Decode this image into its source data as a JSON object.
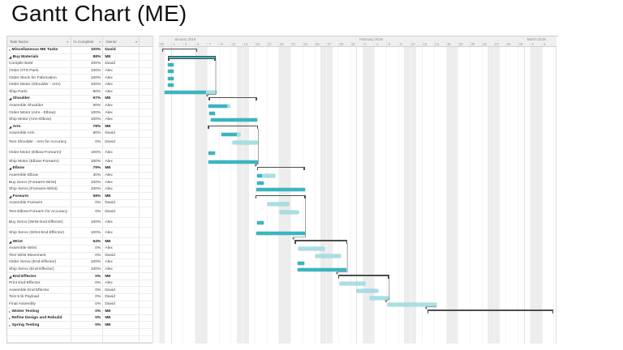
{
  "page_title": "Gantt Chart (ME)",
  "colors": {
    "bar_dark": "#3ab5c1",
    "bar_light": "#a7dfe4",
    "bracket": "#4d4d4d",
    "connector": "#7a7a7a",
    "header_bg": "#efefef",
    "weekend": "#ededed"
  },
  "icons": {
    "dropdown": "▾",
    "expanded": "◢",
    "collapsed": "▸"
  },
  "table": {
    "columns": [
      "Task Name",
      "% Complete",
      "Owner"
    ],
    "empty_rows": 2
  },
  "timeline": {
    "months": [
      {
        "label": "January 2019",
        "startDay": 2
      },
      {
        "label": "February 2019",
        "startDay": 33
      },
      {
        "label": "March 2019",
        "startDay": 61
      }
    ],
    "ticks": [
      {
        "d": 0,
        "t": "30"
      },
      {
        "d": 2,
        "t": "1"
      },
      {
        "d": 4,
        "t": "3"
      },
      {
        "d": 6,
        "t": "5"
      },
      {
        "d": 8,
        "t": "7"
      },
      {
        "d": 10,
        "t": "9"
      },
      {
        "d": 12,
        "t": "11"
      },
      {
        "d": 14,
        "t": "13"
      },
      {
        "d": 16,
        "t": "15"
      },
      {
        "d": 18,
        "t": "17"
      },
      {
        "d": 20,
        "t": "19"
      },
      {
        "d": 22,
        "t": "21"
      },
      {
        "d": 24,
        "t": "23"
      },
      {
        "d": 26,
        "t": "25"
      },
      {
        "d": 28,
        "t": "27"
      },
      {
        "d": 30,
        "t": "29"
      },
      {
        "d": 32,
        "t": "31"
      },
      {
        "d": 34,
        "t": "2"
      },
      {
        "d": 36,
        "t": "4"
      },
      {
        "d": 38,
        "t": "6"
      },
      {
        "d": 40,
        "t": "8"
      },
      {
        "d": 42,
        "t": "10"
      },
      {
        "d": 44,
        "t": "12"
      },
      {
        "d": 46,
        "t": "14"
      },
      {
        "d": 48,
        "t": "16"
      },
      {
        "d": 50,
        "t": "18"
      },
      {
        "d": 52,
        "t": "20"
      },
      {
        "d": 54,
        "t": "22"
      },
      {
        "d": 56,
        "t": "24"
      },
      {
        "d": 58,
        "t": "26"
      },
      {
        "d": 60,
        "t": "28"
      },
      {
        "d": 62,
        "t": "2"
      },
      {
        "d": 64,
        "t": "4"
      }
    ],
    "totalDays": 66.5
  },
  "tasks": [
    {
      "name": "Miscellaneous ME Tasks",
      "pct": "100%",
      "owner": "David",
      "bold": true,
      "expand": "collapsed",
      "bar": {
        "type": "bracket",
        "s": 0.5,
        "e": 6.4
      }
    },
    {
      "name": "Buy Materials",
      "pct": "88%",
      "owner": "ME",
      "bold": true,
      "expand": "expanded",
      "bar": {
        "type": "summary",
        "s": 1.5,
        "e": 9.5
      }
    },
    {
      "name": "Compile BoM",
      "pct": "100%",
      "owner": "David",
      "level": 1,
      "bar": {
        "type": "task",
        "s": 1.5,
        "e": 2.4,
        "done": 1
      }
    },
    {
      "name": "Order OTS Parts",
      "pct": "100%",
      "owner": "Alex",
      "level": 1,
      "bar": {
        "type": "task",
        "s": 1.5,
        "e": 2.4,
        "done": 1
      }
    },
    {
      "name": "Order Stock for Fabrication",
      "pct": "100%",
      "owner": "Alex",
      "level": 1,
      "bar": {
        "type": "task",
        "s": 1.5,
        "e": 2.4,
        "done": 1
      }
    },
    {
      "name": "Order Motor (Shoulder - Arm)",
      "pct": "100%",
      "owner": "Alex",
      "level": 1,
      "bar": {
        "type": "task",
        "s": 1.5,
        "e": 2.4,
        "done": 1
      }
    },
    {
      "name": "Ship Parts",
      "pct": "80%",
      "owner": "Alex",
      "level": 1,
      "bar": {
        "type": "task",
        "s": 1.0,
        "e": 9.6,
        "done": 0.8
      }
    },
    {
      "name": "Shoulder",
      "pct": "97%",
      "owner": "ME",
      "bold": true,
      "expand": "expanded",
      "bar": {
        "type": "bracket",
        "s": 8.3,
        "e": 16.4
      }
    },
    {
      "name": "Assemble Shoulder",
      "pct": "90%",
      "owner": "Alex",
      "level": 1,
      "bar": {
        "type": "task",
        "s": 8.3,
        "e": 11.8,
        "done": 0.9
      }
    },
    {
      "name": "Order Motor (Arm - Elbow)",
      "pct": "100%",
      "owner": "Alex",
      "level": 1,
      "bar": {
        "type": "task",
        "s": 8.4,
        "e": 9.3,
        "done": 1
      }
    },
    {
      "name": "Ship Motor (Arm-Elbow)",
      "pct": "100%",
      "owner": "Alex",
      "level": 1,
      "bar": {
        "type": "task",
        "s": 8.7,
        "e": 16.4,
        "done": 1
      }
    },
    {
      "name": "Arm",
      "pct": "78%",
      "owner": "ME",
      "bold": true,
      "expand": "expanded",
      "bar": {
        "type": "bracket",
        "s": 8.2,
        "e": 16.6
      }
    },
    {
      "name": "Assemble Arm",
      "pct": "80%",
      "owner": "David",
      "level": 1,
      "bar": {
        "type": "task",
        "s": 10.5,
        "e": 13.6,
        "done": 0.8
      }
    },
    {
      "name": "Test Shoulder - Arm for Accuracy",
      "pct": "0%",
      "owner": "David",
      "level": 1,
      "lines": 2,
      "bar": {
        "type": "task",
        "s": 12.4,
        "e": 16.6,
        "done": 0
      }
    },
    {
      "name": "Order Motor (Elbow-Forearm)",
      "pct": "100%",
      "owner": "Alex",
      "level": 1,
      "lines": 2,
      "bar": {
        "type": "task",
        "s": 8.3,
        "e": 9.4,
        "done": 1
      }
    },
    {
      "name": "Ship Motor (Elbow-Forearm)",
      "pct": "100%",
      "owner": "Alex",
      "level": 1,
      "bar": {
        "type": "task",
        "s": 8.3,
        "e": 16.6,
        "done": 1
      }
    },
    {
      "name": "Elbow",
      "pct": "79%",
      "owner": "ME",
      "bold": true,
      "expand": "expanded",
      "bar": {
        "type": "bracket",
        "s": 16.4,
        "e": 24.4
      }
    },
    {
      "name": "Assemble Elbow",
      "pct": "30%",
      "owner": "Alex",
      "level": 1,
      "bar": {
        "type": "task",
        "s": 16.4,
        "e": 19.4,
        "done": 0.3
      }
    },
    {
      "name": "Buy Servo (Forearm-Wrist)",
      "pct": "100%",
      "owner": "Alex",
      "level": 1,
      "bar": {
        "type": "task",
        "s": 16.4,
        "e": 17.5,
        "done": 1
      }
    },
    {
      "name": "Ship Servo (Forearm-Wrist)",
      "pct": "100%",
      "owner": "Alex",
      "level": 1,
      "bar": {
        "type": "task",
        "s": 16.3,
        "e": 24.4,
        "done": 1
      }
    },
    {
      "name": "Forearm",
      "pct": "58%",
      "owner": "ME",
      "bold": true,
      "expand": "expanded",
      "bar": {
        "type": "bracket",
        "s": 16.1,
        "e": 24.5
      }
    },
    {
      "name": "Assemble Forearm",
      "pct": "0%",
      "owner": "David",
      "level": 1,
      "bar": {
        "type": "task",
        "s": 18.2,
        "e": 21.7,
        "done": 0
      }
    },
    {
      "name": "Test Elbow-Forearm for Accuracy",
      "pct": "0%",
      "owner": "David",
      "level": 1,
      "lines": 2,
      "bar": {
        "type": "task",
        "s": 20.2,
        "e": 23.4,
        "done": 0
      }
    },
    {
      "name": "Buy Servo (Wrist-End Effector)",
      "pct": "100%",
      "owner": "Alex",
      "level": 1,
      "lines": 2,
      "bar": {
        "type": "task",
        "s": 16.4,
        "e": 17.5,
        "done": 1
      }
    },
    {
      "name": "Ship Servo (Wrist-End Effector)",
      "pct": "100%",
      "owner": "Alex",
      "level": 1,
      "lines": 2,
      "bar": {
        "type": "task",
        "s": 16.3,
        "e": 24.4,
        "done": 1
      }
    },
    {
      "name": "Wrist",
      "pct": "54%",
      "owner": "ME",
      "bold": true,
      "expand": "expanded",
      "bar": {
        "type": "bracket",
        "s": 22.7,
        "e": 31.5
      }
    },
    {
      "name": "Assemble Wrist",
      "pct": "0%",
      "owner": "Alex",
      "level": 1,
      "bar": {
        "type": "task",
        "s": 23.3,
        "e": 27.7,
        "done": 0
      }
    },
    {
      "name": "Test Wrist Movement",
      "pct": "0%",
      "owner": "David",
      "level": 1,
      "bar": {
        "type": "task",
        "s": 26.2,
        "e": 30.4,
        "done": 0
      }
    },
    {
      "name": "Order Servo (End-Effector)",
      "pct": "100%",
      "owner": "Alex",
      "level": 1,
      "bar": {
        "type": "task",
        "s": 23.2,
        "e": 24.3,
        "done": 1
      }
    },
    {
      "name": "Ship Servo (End-Effector)",
      "pct": "100%",
      "owner": "Alex",
      "level": 1,
      "bar": {
        "type": "task",
        "s": 23.2,
        "e": 31.3,
        "done": 1
      }
    },
    {
      "name": "End Effector",
      "pct": "0%",
      "owner": "ME",
      "bold": true,
      "expand": "expanded",
      "bar": {
        "type": "bracket",
        "s": 30.0,
        "e": 38.5
      }
    },
    {
      "name": "Print End-Effector",
      "pct": "0%",
      "owner": "Alex",
      "level": 1,
      "bar": {
        "type": "task",
        "s": 30.2,
        "e": 34.4,
        "done": 0
      }
    },
    {
      "name": "Assemble End Effector",
      "pct": "0%",
      "owner": "David",
      "level": 1,
      "bar": {
        "type": "task",
        "s": 33.1,
        "e": 36.6,
        "done": 0
      }
    },
    {
      "name": "Test 5 lb Payload",
      "pct": "0%",
      "owner": "David",
      "level": 1,
      "bar": {
        "type": "task",
        "s": 35.3,
        "e": 38.5,
        "done": 0
      }
    },
    {
      "name": "Final Assembly",
      "pct": "0%",
      "owner": "David",
      "bar": {
        "type": "task",
        "s": 38.2,
        "e": 46.4,
        "done": 0
      }
    },
    {
      "name": "Winter Testing",
      "pct": "0%",
      "owner": "ME",
      "bold": true,
      "expand": "collapsed",
      "bar": {
        "type": "bracket",
        "s": 44.9,
        "e": 66.0
      }
    },
    {
      "name": "Refine Design and Rebuild",
      "pct": "0%",
      "owner": "ME",
      "bold": true,
      "expand": "collapsed",
      "bar": null
    },
    {
      "name": "Spring Testing",
      "pct": "0%",
      "owner": "ME",
      "bold": true,
      "expand": "collapsed",
      "bar": null
    }
  ],
  "connectors": [
    {
      "from": 1,
      "to": 7
    },
    {
      "from": 11,
      "to": 16
    },
    {
      "from": 20,
      "to": 25
    },
    {
      "from": 25,
      "to": 30
    },
    {
      "from": 30,
      "to": 34
    },
    {
      "from": 34,
      "to": 35
    }
  ]
}
